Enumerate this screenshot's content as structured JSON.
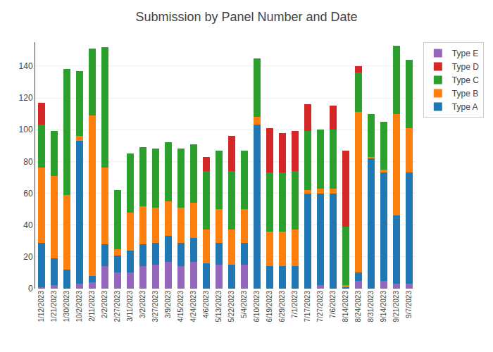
{
  "chart_data": {
    "type": "bar",
    "title": "Submission by Panel Number and Date",
    "stacked": true,
    "categories": [
      "1/12/2023",
      "1/21/2023",
      "1/30/2023",
      "10/2/2023",
      "2/11/2023",
      "2/2/2023",
      "2/27/2023",
      "3/11/2023",
      "3/2/2023",
      "3/27/2023",
      "3/9/2023",
      "4/15/2023",
      "4/24/2023",
      "4/6/2023",
      "5/13/2023",
      "5/22/2023",
      "5/4/2023",
      "6/10/2023",
      "6/19/2023",
      "6/29/2023",
      "7/1/2023",
      "7/17/2023",
      "7/27/2023",
      "7/6/2023",
      "8/14/2023",
      "8/24/2023",
      "8/31/2023",
      "9/14/2023",
      "9/21/2023",
      "9/7/2023"
    ],
    "series": [
      {
        "name": "Type E",
        "color": "#9467bd",
        "values": [
          1,
          2,
          0,
          3,
          4,
          14,
          10,
          10,
          14,
          15,
          17,
          14,
          17,
          0,
          15,
          0,
          15,
          0,
          0,
          0,
          0,
          0,
          2,
          0,
          0,
          5,
          0,
          5,
          3,
          3
        ]
      },
      {
        "name": "Type A",
        "color": "#1f77b4",
        "values": [
          28,
          17,
          12,
          90,
          4,
          14,
          11,
          14,
          14,
          14,
          16,
          15,
          15,
          16,
          14,
          15,
          14,
          103,
          14,
          14,
          14,
          60,
          58,
          60,
          1,
          5,
          82,
          68,
          43,
          70
        ]
      },
      {
        "name": "Type B",
        "color": "#ff7f0e",
        "values": [
          47,
          52,
          47,
          3,
          101,
          48,
          4,
          24,
          24,
          22,
          22,
          22,
          22,
          21,
          21,
          22,
          21,
          5,
          22,
          22,
          23,
          2,
          3,
          3,
          1,
          101,
          1,
          2,
          64,
          28
        ]
      },
      {
        "name": "Type C",
        "color": "#2ca02c",
        "values": [
          27,
          28,
          79,
          41,
          42,
          76,
          37,
          37,
          37,
          37,
          37,
          37,
          37,
          37,
          37,
          37,
          37,
          37,
          37,
          37,
          37,
          37,
          37,
          37,
          37,
          25,
          27,
          30,
          43,
          43
        ]
      },
      {
        "name": "Type D",
        "color": "#d62728",
        "values": [
          14,
          0,
          0,
          0,
          0,
          0,
          0,
          0,
          0,
          0,
          0,
          0,
          0,
          9,
          0,
          22,
          0,
          0,
          28,
          25,
          25,
          17,
          0,
          15,
          48,
          4,
          0,
          0,
          0,
          0
        ]
      }
    ],
    "ylim": [
      0,
      155
    ],
    "yticks": [
      0,
      20,
      40,
      60,
      80,
      100,
      120,
      140
    ],
    "grid": true,
    "legend": "upper right"
  }
}
